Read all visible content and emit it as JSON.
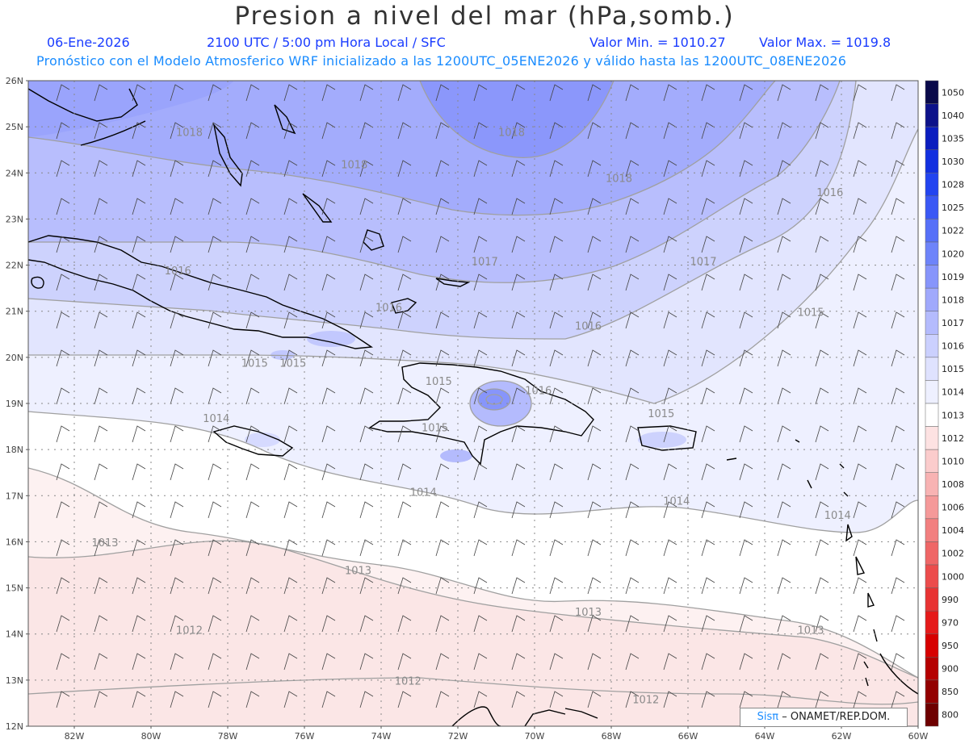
{
  "header": {
    "title": "Presion a nivel del mar (hPa,somb.)",
    "date": "06-Ene-2026",
    "time_info": "2100 UTC / 5:00 pm Hora Local / SFC",
    "min_label": "Valor Min. = 1010.27",
    "max_label": "Valor Max. = 1019.8",
    "model_info": "Pronóstico con el Modelo Atmosferico WRF inicializado a las 1200UTC_05ENE2026 y válido hasta las  1200UTC_08ENE2026"
  },
  "axes": {
    "lat_labels": [
      "26N",
      "25N",
      "24N",
      "23N",
      "22N",
      "21N",
      "20N",
      "19N",
      "18N",
      "17N",
      "16N",
      "15N",
      "14N",
      "13N",
      "12N"
    ],
    "lon_labels": [
      "82W",
      "80W",
      "78W",
      "76W",
      "74W",
      "72W",
      "70W",
      "68W",
      "66W",
      "64W",
      "62W",
      "60W"
    ],
    "lat_range": [
      12,
      26
    ],
    "lon_range": [
      -83.2,
      -60
    ]
  },
  "colorbar": {
    "levels": [
      "1050",
      "1040",
      "1035",
      "1030",
      "1028",
      "1025",
      "1022",
      "1020",
      "1019",
      "1018",
      "1017",
      "1016",
      "1015",
      "1014",
      "1013",
      "1012",
      "1010",
      "1008",
      "1006",
      "1004",
      "1002",
      "1000",
      "990",
      "970",
      "950",
      "900",
      "850",
      "800"
    ],
    "colors": [
      "#0a0a4a",
      "#0d128a",
      "#0b1dbf",
      "#1230e0",
      "#2244f0",
      "#3a58f5",
      "#5670f8",
      "#6e84fa",
      "#8795fb",
      "#a0a9fc",
      "#b4bbfd",
      "#cbd0fe",
      "#dfe2fe",
      "#eef0ff",
      "#ffffff",
      "#fde2e2",
      "#fbcccc",
      "#f8b3b3",
      "#f59999",
      "#f27f7f",
      "#ef6666",
      "#ec4c4c",
      "#e83333",
      "#e51a1a",
      "#d70000",
      "#b50000",
      "#930000",
      "#6e0000"
    ]
  },
  "contour_labels": [
    {
      "text": "1018",
      "lon": -79.0,
      "lat": 24.8
    },
    {
      "text": "1018",
      "lon": -74.7,
      "lat": 24.1
    },
    {
      "text": "1018",
      "lon": -70.6,
      "lat": 24.8
    },
    {
      "text": "1018",
      "lon": -67.8,
      "lat": 23.8
    },
    {
      "text": "1017",
      "lon": -71.3,
      "lat": 22.0
    },
    {
      "text": "1017",
      "lon": -65.6,
      "lat": 22.0
    },
    {
      "text": "1016",
      "lon": -79.3,
      "lat": 21.8
    },
    {
      "text": "1016",
      "lon": -73.8,
      "lat": 21.0
    },
    {
      "text": "1016",
      "lon": -68.6,
      "lat": 20.6
    },
    {
      "text": "1016",
      "lon": -62.3,
      "lat": 23.5
    },
    {
      "text": "1016",
      "lon": -69.9,
      "lat": 19.2
    },
    {
      "text": "1015",
      "lon": -62.8,
      "lat": 20.9
    },
    {
      "text": "1015",
      "lon": -66.7,
      "lat": 18.7
    },
    {
      "text": "1015",
      "lon": -76.3,
      "lat": 19.8
    },
    {
      "text": "1015",
      "lon": -77.3,
      "lat": 19.8
    },
    {
      "text": "1015",
      "lon": -72.5,
      "lat": 19.4
    },
    {
      "text": "1015",
      "lon": -72.6,
      "lat": 18.4
    },
    {
      "text": "1014",
      "lon": -78.3,
      "lat": 18.6
    },
    {
      "text": "1014",
      "lon": -72.9,
      "lat": 17.0
    },
    {
      "text": "1014",
      "lon": -66.3,
      "lat": 16.8
    },
    {
      "text": "1014",
      "lon": -62.1,
      "lat": 16.5
    },
    {
      "text": "1013",
      "lon": -81.2,
      "lat": 15.9
    },
    {
      "text": "1013",
      "lon": -74.6,
      "lat": 15.3
    },
    {
      "text": "1013",
      "lon": -68.6,
      "lat": 14.4
    },
    {
      "text": "1013",
      "lon": -62.8,
      "lat": 14.0
    },
    {
      "text": "1012",
      "lon": -79.0,
      "lat": 14.0
    },
    {
      "text": "1012",
      "lon": -73.3,
      "lat": 12.9
    },
    {
      "text": "1012",
      "lon": -67.1,
      "lat": 12.5
    }
  ],
  "credit": {
    "sis": "Sisπ",
    "text": "– ONAMET/REP.DOM."
  }
}
